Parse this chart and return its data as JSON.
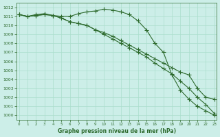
{
  "xlabel": "Graphe pression niveau de la mer (hPa)",
  "background_color": "#cceee8",
  "grid_color": "#aaddcc",
  "line_color": "#2d6a2d",
  "x": [
    0,
    1,
    2,
    3,
    4,
    5,
    6,
    7,
    8,
    9,
    10,
    11,
    12,
    13,
    14,
    15,
    16,
    17,
    18,
    19,
    20,
    21,
    22,
    23
  ],
  "line1": [
    1011.2,
    1011.0,
    1011.2,
    1011.3,
    1011.1,
    1011.0,
    1011.0,
    1011.3,
    1011.5,
    1011.6,
    1011.8,
    1011.7,
    1011.5,
    1011.2,
    1010.5,
    1009.5,
    1008.0,
    1007.0,
    1004.5,
    1002.8,
    1001.8,
    1001.0,
    1000.5,
    1000.0
  ],
  "line2": [
    1011.2,
    1011.0,
    1011.1,
    1011.2,
    1011.1,
    1010.8,
    1010.4,
    1010.2,
    1010.0,
    1009.5,
    1009.0,
    1008.5,
    1008.0,
    1007.5,
    1007.0,
    1006.5,
    1005.8,
    1005.2,
    1004.6,
    1003.8,
    1003.0,
    1002.0,
    1001.2,
    1000.2
  ],
  "line3": [
    1011.2,
    1011.0,
    1011.1,
    1011.2,
    1011.1,
    1010.8,
    1010.4,
    1010.2,
    1010.0,
    1009.5,
    1009.2,
    1008.8,
    1008.3,
    1007.8,
    1007.3,
    1006.8,
    1006.3,
    1005.8,
    1005.3,
    1004.8,
    1004.5,
    1003.0,
    1002.0,
    1001.8
  ],
  "ylim": [
    999.5,
    1012.5
  ],
  "yticks": [
    1000,
    1001,
    1002,
    1003,
    1004,
    1005,
    1006,
    1007,
    1008,
    1009,
    1010,
    1011,
    1012
  ],
  "xlim": [
    -0.3,
    23.3
  ],
  "marker": "+",
  "marker_size": 4,
  "line_width": 0.8
}
